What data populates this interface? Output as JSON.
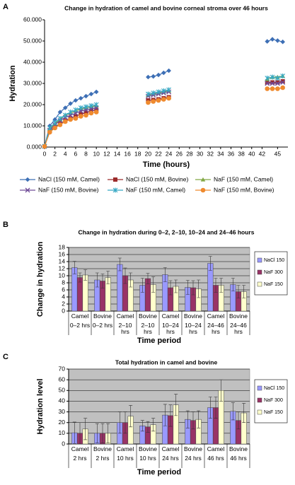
{
  "chart_data": [
    {
      "type": "line",
      "panel": "A",
      "title": "Change in hydration of camel and bovine corneal stroma over 46 hours",
      "x_label": "Time (hours)",
      "y_label": "Hydration",
      "x": [
        0,
        1,
        2,
        3,
        4,
        5,
        6,
        7,
        8,
        9,
        10,
        15,
        20,
        21,
        22,
        23,
        24,
        34,
        43,
        44,
        45,
        46
      ],
      "xlim": [
        0,
        47
      ],
      "xticks": [
        0,
        2,
        4,
        6,
        8,
        10,
        12,
        14,
        16,
        18,
        20,
        22,
        24,
        26,
        28,
        30,
        32,
        34,
        36,
        38,
        40,
        42,
        45
      ],
      "ylim": [
        0,
        60
      ],
      "yticks": [
        {
          "value": 0,
          "label": "0.000"
        },
        {
          "value": 10,
          "label": "10.000"
        },
        {
          "value": 20,
          "label": "20.000"
        },
        {
          "value": 30,
          "label": "30.000"
        },
        {
          "value": 40,
          "label": "40.000"
        },
        {
          "value": 50,
          "label": "50.000"
        },
        {
          "value": 60,
          "label": "60.000"
        }
      ],
      "series": [
        {
          "name": "NaCl (150 mM, Camel)",
          "color": "#3d6fb5",
          "marker": "diamond",
          "values": [
            0.5,
            10,
            13,
            16.5,
            18.5,
            20.5,
            22,
            23,
            24,
            25,
            26,
            null,
            33,
            33.3,
            34,
            35,
            36,
            null,
            49.8,
            50.8,
            50.2,
            49.6
          ]
        },
        {
          "name": "NaCl (150 mM, Bovine)",
          "color": "#9b2a2a",
          "marker": "square",
          "values": [
            0.3,
            7.5,
            9.5,
            11,
            12.5,
            13.5,
            14.5,
            15.5,
            16.2,
            17,
            17.5,
            null,
            22,
            22.2,
            22.5,
            23,
            23.5,
            null,
            30.5,
            30.5,
            30.5,
            31
          ]
        },
        {
          "name": "NaF (150 mM, Camel)",
          "color": "#82a844",
          "marker": "triangle",
          "values": [
            0.4,
            8.5,
            11,
            13,
            15,
            16,
            17,
            18,
            18.5,
            19,
            19.5,
            null,
            24.5,
            25,
            25.5,
            26,
            26.5,
            null,
            32,
            33,
            33,
            33.5
          ]
        },
        {
          "name": "NaF (150 mM, Bovine)",
          "color": "#6f4a96",
          "marker": "x",
          "values": [
            0.3,
            8,
            10.5,
            12.5,
            14,
            15,
            16,
            17,
            17.5,
            18,
            18.5,
            null,
            24,
            24.5,
            25,
            25.5,
            26,
            null,
            30,
            30,
            30,
            30.5
          ]
        },
        {
          "name": "NaF (150 mM, Camel)",
          "color": "#36a8c4",
          "marker": "asterisk",
          "values": [
            0.4,
            9,
            11.5,
            13.5,
            15,
            16.5,
            17.5,
            18.5,
            19,
            19.5,
            20,
            null,
            25,
            25.5,
            26,
            26.5,
            27,
            null,
            32.5,
            33,
            32.5,
            33.5
          ]
        },
        {
          "name": "NaF (150 mM, Bovine)",
          "color": "#ef8a2e",
          "marker": "circle",
          "values": [
            0.3,
            7,
            9,
            10.5,
            12,
            13,
            13.5,
            14.5,
            15,
            16,
            16.5,
            null,
            21,
            21.5,
            22,
            22.5,
            23,
            null,
            27.5,
            27.5,
            27.5,
            28
          ]
        }
      ]
    },
    {
      "type": "bar",
      "panel": "B",
      "title": "Change in hydration during 0–2, 2–10, 10–24 and 24–46 hours",
      "x_label": "Time period",
      "y_label": "Change in hydration",
      "categories": [
        [
          "Camel",
          "0–2 hrs"
        ],
        [
          "Bovine",
          "0–2 hrs"
        ],
        [
          "Camel",
          "2–10 hrs"
        ],
        [
          "Bovine",
          "2–10 hrs"
        ],
        [
          "Camel",
          "10–24 hrs"
        ],
        [
          "Bovine",
          "10–24 hrs"
        ],
        [
          "Camel",
          "24–46 hrs"
        ],
        [
          "Bovine",
          "24–46 hrs"
        ]
      ],
      "ylim": [
        0,
        18
      ],
      "yticks": [
        0,
        2,
        4,
        6,
        8,
        10,
        12,
        14,
        16,
        18
      ],
      "grid": true,
      "series": [
        {
          "name": "NaCl 150",
          "color": "#9999ff",
          "values": [
            12.3,
            8.8,
            13.2,
            7.3,
            10.3,
            6.7,
            13.5,
            7.5
          ],
          "errors": [
            1.8,
            2,
            1.8,
            2,
            2,
            2,
            2,
            1.8
          ]
        },
        {
          "name": "NaF 300",
          "color": "#993366",
          "values": [
            9.5,
            8.5,
            10,
            9.2,
            6.6,
            6.6,
            7.3,
            5.5
          ],
          "errors": [
            1.3,
            2,
            2.2,
            1.5,
            2,
            2,
            2,
            1.8
          ]
        },
        {
          "name": "NaF 150",
          "color": "#ffffcc",
          "values": [
            10.2,
            9.5,
            8.8,
            7.5,
            7,
            6.3,
            7.3,
            5.5
          ],
          "errors": [
            1.5,
            1.8,
            2,
            2.2,
            1.8,
            2.5,
            2,
            1.8
          ]
        }
      ]
    },
    {
      "type": "bar",
      "panel": "C",
      "title": "Total hydration in camel and bovine",
      "x_label": "Time period",
      "y_label": "Hydration level",
      "categories": [
        [
          "Camel",
          "2 hrs"
        ],
        [
          "Bovine",
          "2 hrs"
        ],
        [
          "Camel",
          "10 hrs"
        ],
        [
          "Bovine",
          "10 hrs"
        ],
        [
          "Camel",
          "24 hrs"
        ],
        [
          "Bovine",
          "24 hrs"
        ],
        [
          "Camel",
          "46 hrs"
        ],
        [
          "Bovine",
          "46 hrs"
        ]
      ],
      "ylim": [
        0,
        70
      ],
      "yticks": [
        0,
        10,
        20,
        30,
        40,
        50,
        60,
        70
      ],
      "grid": true,
      "series": [
        {
          "name": "NaCl 150",
          "color": "#9999ff",
          "values": [
            10.5,
            10,
            20,
            17,
            27,
            23,
            34,
            30.5
          ],
          "errors": [
            10,
            9,
            10,
            5,
            10,
            8,
            10,
            8
          ]
        },
        {
          "name": "NaF 300",
          "color": "#993366",
          "values": [
            10,
            10,
            20,
            16,
            26.5,
            22,
            34,
            22
          ],
          "errors": [
            10,
            9,
            10,
            5,
            10,
            8,
            10,
            8
          ]
        },
        {
          "name": "NaF 150",
          "color": "#ffffcc",
          "values": [
            14,
            10,
            26,
            18,
            36.5,
            23,
            50,
            29
          ],
          "errors": [
            10,
            9,
            10,
            6,
            10,
            8,
            10,
            9
          ]
        }
      ]
    }
  ]
}
